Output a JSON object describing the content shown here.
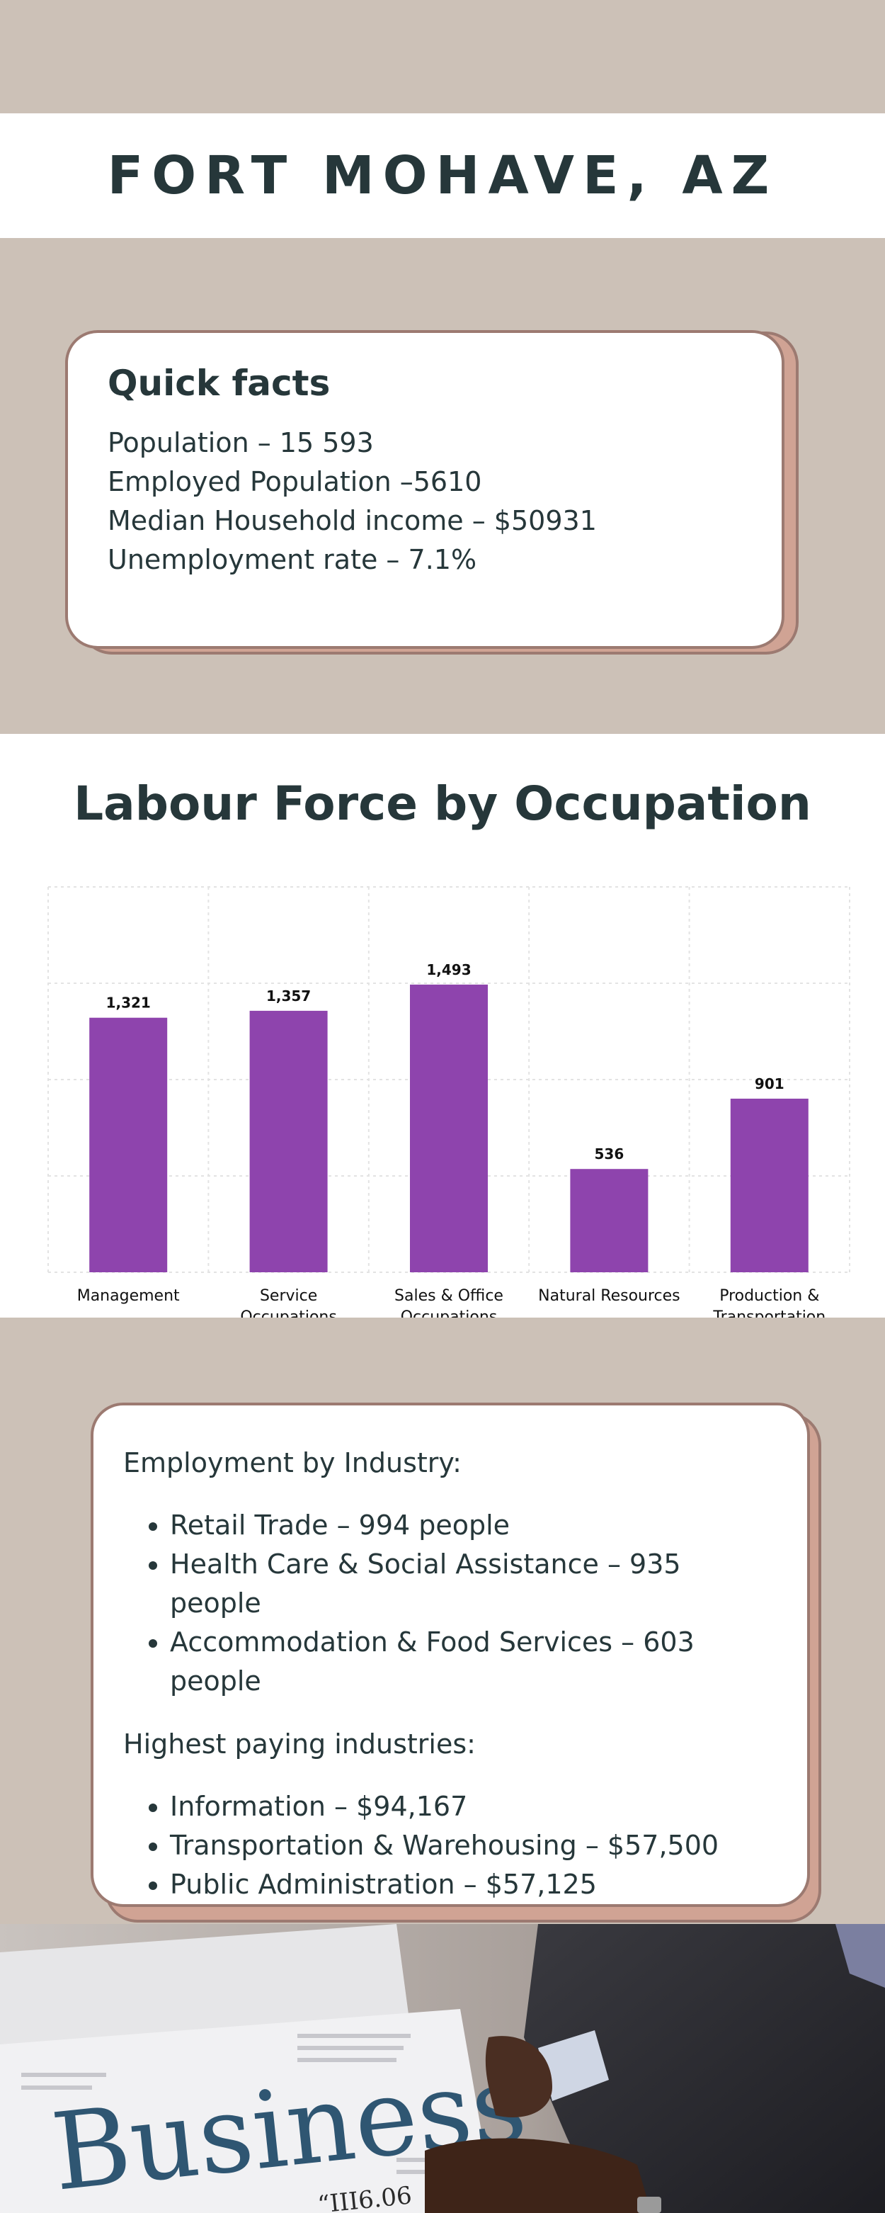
{
  "header": {
    "title": "FORT MOHAVE, AZ"
  },
  "quick_facts": {
    "heading": "Quick facts",
    "lines": [
      "Population – 15 593",
      "Employed Population –5610",
      "Median Household income – $50931",
      "Unemployment rate – 7.1%"
    ]
  },
  "chart_section": {
    "heading": "Labour Force by Occupation"
  },
  "chart_data": {
    "type": "bar",
    "title": "Labour Force by Occupation",
    "categories": [
      [
        "Management"
      ],
      [
        "Service",
        "Occupations"
      ],
      [
        "Sales & Office",
        "Occupations"
      ],
      [
        "Natural Resources"
      ],
      [
        "Production &",
        "Transportation"
      ]
    ],
    "values": [
      1321,
      1357,
      1493,
      536,
      901
    ],
    "value_labels": [
      "1,321",
      "1,357",
      "1,493",
      "536",
      "901"
    ],
    "ylim": [
      0,
      2000
    ],
    "grid": true,
    "bar_color": "#8e44ad"
  },
  "industry": {
    "employment_heading": "Employment by Industry:",
    "employment_items": [
      "Retail Trade – 994 people",
      "Health Care & Social Assistance – 935 people",
      "Accommodation & Food Services – 603 people"
    ],
    "paying_heading": "Highest paying industries:",
    "paying_items": [
      "Information – $94,167",
      "Transportation & Warehousing – $57,500",
      "Public Administration – $57,125"
    ]
  },
  "photo": {
    "newspaper_word": "Business",
    "caption_fragment": "“III6.06"
  },
  "colors": {
    "beige": "#ccc1b7",
    "dark_text": "#26373a",
    "card_shadow": "#d0a394",
    "card_border": "#9c7a71",
    "bar": "#8e44ad"
  }
}
